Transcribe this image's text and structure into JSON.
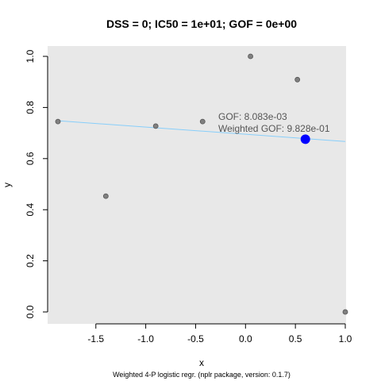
{
  "chart_data": {
    "type": "scatter",
    "title": "DSS = 0; IC50 = 1e+01; GOF = 0e+00",
    "xlabel": "x",
    "ylabel": "y",
    "xlim": [
      -1.88,
      1.0
    ],
    "ylim": [
      0.0,
      1.0
    ],
    "xticks": [
      -1.5,
      -1.0,
      -0.5,
      0.0,
      0.5,
      1.0
    ],
    "xtick_labels": [
      "-1.5",
      "-1.0",
      "-0.5",
      "0.0",
      "0.5",
      "1.0"
    ],
    "yticks": [
      0.0,
      0.2,
      0.4,
      0.6,
      0.8,
      1.0
    ],
    "ytick_labels": [
      "0.0",
      "0.2",
      "0.4",
      "0.6",
      "0.8",
      "1.0"
    ],
    "grid": false,
    "background_color": "#e8e8e8",
    "points": [
      {
        "x": -1.88,
        "y": 0.745
      },
      {
        "x": -1.4,
        "y": 0.453
      },
      {
        "x": -0.9,
        "y": 0.727
      },
      {
        "x": -0.43,
        "y": 0.745
      },
      {
        "x": 0.05,
        "y": 1.0
      },
      {
        "x": 0.52,
        "y": 0.909
      },
      {
        "x": 1.0,
        "y": 0.0
      }
    ],
    "point_color": "#808080",
    "fit_line": {
      "x": [
        -1.88,
        1.0
      ],
      "y": [
        0.748,
        0.667
      ],
      "color": "#87cefa"
    },
    "highlight_point": {
      "x": 0.6,
      "y": 0.676,
      "color": "#0000ff"
    },
    "annotations": [
      "GOF: 8.083e-03",
      "Weighted GOF: 9.828e-01"
    ],
    "footer": "Weighted 4-P logistic regr. (nplr package, version: 0.1.7)"
  }
}
